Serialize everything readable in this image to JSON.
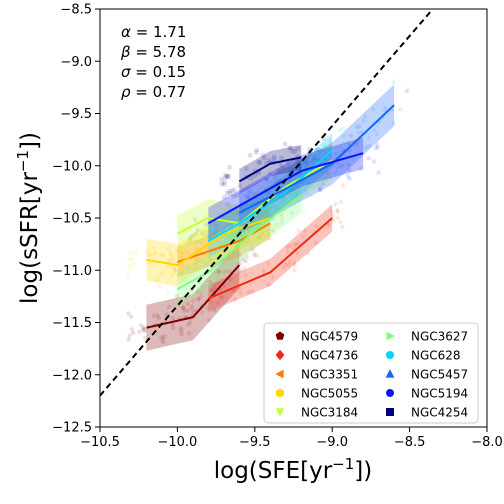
{
  "chart_data": {
    "type": "scatter",
    "xlabel": "log(SFE[yr$^{-1}$])",
    "ylabel": "log(sSFR[yr$^{-1}$])",
    "xlim": [
      -10.5,
      -8.0
    ],
    "ylim": [
      -12.5,
      -8.5
    ],
    "x_ticks": [
      -10.5,
      -10.0,
      -9.5,
      -9.0,
      -8.5,
      -8.0
    ],
    "y_ticks": [
      -12.5,
      -12.0,
      -11.5,
      -11.0,
      -10.5,
      -10.0,
      -9.5,
      -9.0,
      -8.5
    ],
    "x_tick_labels": [
      "−10.5",
      "−10.0",
      "−9.5",
      "−9.0",
      "−8.5",
      "−8.0"
    ],
    "y_tick_labels": [
      "−12.5",
      "−12.0",
      "−11.5",
      "−11.0",
      "−10.5",
      "−10.0",
      "−9.5",
      "−9.0",
      "−8.5"
    ],
    "grid": false,
    "legend_position": "lower-right",
    "annotations": [
      {
        "symbol": "α",
        "value": "1.71"
      },
      {
        "symbol": "β",
        "value": "5.78"
      },
      {
        "symbol": "σ",
        "value": "0.15"
      },
      {
        "symbol": "ρ",
        "value": "0.77"
      }
    ],
    "fit_line": {
      "style": "dashed",
      "color": "#000000",
      "x": [
        -10.5,
        -8.35
      ],
      "y": [
        -12.2,
        -8.5
      ]
    },
    "series": [
      {
        "name": "NGC4579",
        "marker": "pentagon",
        "color": "#800000",
        "x": [
          -10.2,
          -9.9,
          -9.6
        ],
        "y": [
          -11.55,
          -11.45,
          -10.95
        ],
        "band": 0.22
      },
      {
        "name": "NGC4736",
        "marker": "diamond",
        "color": "#ee2b10",
        "x": [
          -9.8,
          -9.4,
          -9.0
        ],
        "y": [
          -11.27,
          -11.02,
          -10.5
        ],
        "band": 0.13
      },
      {
        "name": "NGC3351",
        "marker": "triangle-left",
        "color": "#ff7a00",
        "x": [
          -10.0,
          -9.6,
          -9.4
        ],
        "y": [
          -10.92,
          -10.72,
          -10.55
        ],
        "band": 0.15
      },
      {
        "name": "NGC5055",
        "marker": "hexagon",
        "color": "#ffd700",
        "x": [
          -10.2,
          -10.0,
          -9.7,
          -9.4
        ],
        "y": [
          -10.9,
          -10.95,
          -10.65,
          -10.5
        ],
        "band": 0.2
      },
      {
        "name": "NGC3184",
        "marker": "triangle-down",
        "color": "#c3ff34",
        "x": [
          -10.0,
          -9.8,
          -9.6,
          -9.3,
          -9.0
        ],
        "y": [
          -10.65,
          -10.5,
          -10.55,
          -10.2,
          -9.95
        ],
        "band": 0.18
      },
      {
        "name": "NGC3627",
        "marker": "triangle-right",
        "color": "#7dff7a",
        "x": [
          -10.0,
          -9.8,
          -9.5,
          -9.2
        ],
        "y": [
          -11.18,
          -11.02,
          -10.62,
          -10.28
        ],
        "band": 0.17
      },
      {
        "name": "NGC628",
        "marker": "circle",
        "color": "#00d4ff",
        "x": [
          -9.8,
          -9.6,
          -9.3,
          -9.0
        ],
        "y": [
          -10.72,
          -10.55,
          -10.25,
          -9.85
        ],
        "band": 0.16
      },
      {
        "name": "NGC5457",
        "marker": "triangle-up",
        "color": "#1464ff",
        "x": [
          -9.6,
          -9.3,
          -9.0,
          -8.6
        ],
        "y": [
          -10.45,
          -10.22,
          -9.98,
          -9.42
        ],
        "band": 0.2
      },
      {
        "name": "NGC5194",
        "marker": "circle",
        "color": "#0a14ff",
        "x": [
          -9.8,
          -9.5,
          -9.2,
          -8.8
        ],
        "y": [
          -10.55,
          -10.3,
          -10.05,
          -9.88
        ],
        "band": 0.15
      },
      {
        "name": "NGC4254",
        "marker": "square",
        "color": "#00007a",
        "x": [
          -9.6,
          -9.4,
          -9.2
        ],
        "y": [
          -10.15,
          -9.98,
          -9.92
        ],
        "band": 0.12
      }
    ]
  }
}
